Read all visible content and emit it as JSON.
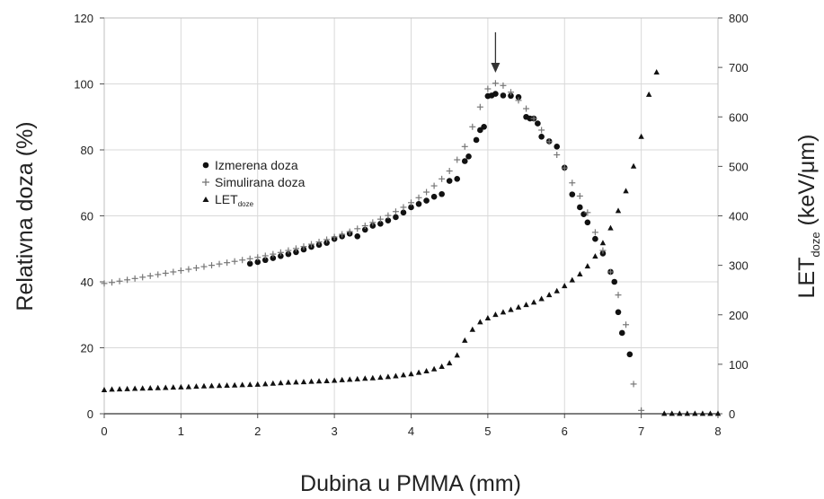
{
  "chart_data": {
    "type": "scatter",
    "title": "",
    "xlabel": "Dubina u PMMA (mm)",
    "ylabel": "Relativna doza (%)",
    "y2label": {
      "main": "LET",
      "sub": "doze",
      "unit": " (keV/μm)"
    },
    "xlim": [
      0,
      8
    ],
    "ylim": [
      0,
      120
    ],
    "y2lim": [
      0,
      800
    ],
    "x_ticks": [
      "0",
      "1",
      "2",
      "3",
      "4",
      "5",
      "6",
      "7",
      "8"
    ],
    "y_ticks": [
      "0",
      "20",
      "40",
      "60",
      "80",
      "100",
      "120"
    ],
    "y2_ticks": [
      "0",
      "100",
      "200",
      "300",
      "400",
      "500",
      "600",
      "700",
      "800"
    ],
    "grid": true,
    "legend_position": "center-left",
    "peak_arrow_x": 5.1,
    "series": [
      {
        "name": "Izmerena doza",
        "label_main": "Izmerena doza",
        "marker": "circle",
        "color": "#111111",
        "axis": "left",
        "x": [
          1.9,
          2.0,
          2.1,
          2.2,
          2.3,
          2.4,
          2.5,
          2.6,
          2.7,
          2.8,
          2.9,
          3.0,
          3.1,
          3.2,
          3.3,
          3.4,
          3.5,
          3.6,
          3.7,
          3.8,
          3.9,
          4.0,
          4.1,
          4.2,
          4.3,
          4.4,
          4.5,
          4.6,
          4.7,
          4.75,
          4.85,
          4.9,
          4.95,
          5.0,
          5.05,
          5.1,
          5.2,
          5.3,
          5.4,
          5.5,
          5.55,
          5.6,
          5.65,
          5.7,
          5.8,
          5.9,
          6.0,
          6.1,
          6.2,
          6.25,
          6.3,
          6.4,
          6.5,
          6.6,
          6.65,
          6.7,
          6.75,
          6.85
        ],
        "y": [
          45.5,
          46,
          46.6,
          47.2,
          47.8,
          48.4,
          49,
          49.8,
          50.6,
          51.2,
          51.8,
          53,
          53.8,
          54.6,
          53.8,
          55.8,
          57,
          57.6,
          58.6,
          59.6,
          61,
          62.6,
          63.6,
          64.6,
          65.8,
          66.6,
          70.6,
          71.2,
          76.6,
          78,
          83,
          86,
          87,
          96.3,
          96.5,
          97,
          96.5,
          96.4,
          96,
          90,
          89.5,
          89.5,
          88,
          84,
          82.6,
          81,
          74.6,
          66.5,
          62.6,
          60.5,
          58,
          53,
          48.6,
          43,
          40,
          30.8,
          24.5,
          18
        ],
        "style": "circle"
      },
      {
        "name": "Simulirana doza",
        "label_main": "Simulirana doza",
        "marker": "plus",
        "color": "#777777",
        "axis": "left",
        "x": [
          0.0,
          0.1,
          0.2,
          0.3,
          0.4,
          0.5,
          0.6,
          0.7,
          0.8,
          0.9,
          1.0,
          1.1,
          1.2,
          1.3,
          1.4,
          1.5,
          1.6,
          1.7,
          1.8,
          1.9,
          2.0,
          2.1,
          2.2,
          2.3,
          2.4,
          2.5,
          2.6,
          2.7,
          2.8,
          2.9,
          3.0,
          3.1,
          3.2,
          3.3,
          3.4,
          3.5,
          3.6,
          3.7,
          3.8,
          3.9,
          4.0,
          4.1,
          4.2,
          4.3,
          4.4,
          4.5,
          4.6,
          4.7,
          4.8,
          4.9,
          5.0,
          5.1,
          5.2,
          5.3,
          5.4,
          5.5,
          5.6,
          5.7,
          5.8,
          5.9,
          6.0,
          6.1,
          6.2,
          6.3,
          6.4,
          6.5,
          6.6,
          6.7,
          6.8,
          6.9,
          7.0
        ],
        "y": [
          39.5,
          39.8,
          40.2,
          40.6,
          41,
          41.4,
          41.8,
          42.2,
          42.6,
          43,
          43.4,
          43.8,
          44.2,
          44.6,
          45,
          45.4,
          45.8,
          46.2,
          46.6,
          47,
          47.4,
          47.9,
          48.4,
          48.9,
          49.5,
          50.1,
          50.7,
          51.4,
          52.1,
          52.8,
          53.6,
          54.4,
          55.2,
          56.1,
          57,
          58,
          59,
          60.1,
          61.3,
          62.6,
          64,
          65.5,
          67.2,
          69.1,
          71.2,
          73.6,
          77,
          81,
          87,
          93,
          98.5,
          100.2,
          99.5,
          97.5,
          95,
          92.5,
          89.5,
          86,
          82.5,
          78.5,
          74.5,
          70,
          66,
          61,
          55,
          49.5,
          43,
          36,
          27,
          9,
          1
        ],
        "style": "plus"
      },
      {
        "name": "LET doze",
        "label_main": "LET",
        "label_sub": "doze",
        "marker": "triangle",
        "color": "#111111",
        "axis": "right",
        "x": [
          0.0,
          0.1,
          0.2,
          0.3,
          0.4,
          0.5,
          0.6,
          0.7,
          0.8,
          0.9,
          1.0,
          1.1,
          1.2,
          1.3,
          1.4,
          1.5,
          1.6,
          1.7,
          1.8,
          1.9,
          2.0,
          2.1,
          2.2,
          2.3,
          2.4,
          2.5,
          2.6,
          2.7,
          2.8,
          2.9,
          3.0,
          3.1,
          3.2,
          3.3,
          3.4,
          3.5,
          3.6,
          3.7,
          3.8,
          3.9,
          4.0,
          4.1,
          4.2,
          4.3,
          4.4,
          4.5,
          4.6,
          4.7,
          4.8,
          4.9,
          5.0,
          5.1,
          5.2,
          5.3,
          5.4,
          5.5,
          5.6,
          5.7,
          5.8,
          5.9,
          6.0,
          6.1,
          6.2,
          6.3,
          6.4,
          6.5,
          6.6,
          6.7,
          6.8,
          6.9,
          7.0,
          7.1,
          7.2,
          7.3,
          7.4,
          7.5,
          7.6,
          7.7,
          7.8,
          7.9,
          8.0
        ],
        "y": [
          48,
          49,
          49.5,
          50,
          50.5,
          51,
          51.5,
          52,
          52.5,
          53,
          53.5,
          54,
          55,
          55.5,
          56,
          56.5,
          57,
          57.5,
          58,
          58.5,
          59,
          60,
          61,
          62,
          63,
          63.5,
          64,
          65,
          65.5,
          66,
          67,
          68,
          69,
          70,
          71,
          72,
          73,
          74.5,
          76,
          78,
          80,
          83,
          86,
          90,
          95,
          102,
          118,
          148,
          170,
          185,
          193,
          200,
          205,
          210,
          215,
          220,
          225,
          232,
          240,
          248,
          258,
          270,
          282,
          298,
          318,
          345,
          375,
          410,
          450,
          500,
          560,
          645,
          690,
          0,
          0,
          0,
          0,
          0,
          0,
          0,
          0
        ],
        "style": "triangle"
      }
    ]
  }
}
